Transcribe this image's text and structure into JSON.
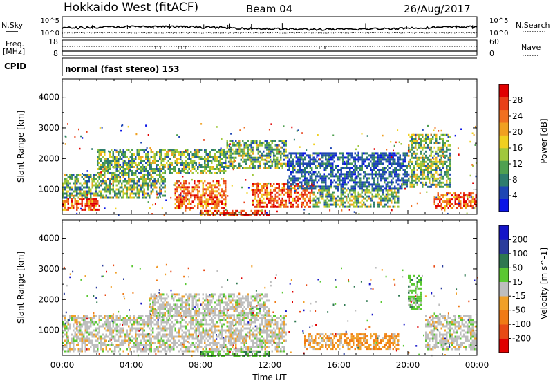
{
  "header": {
    "station": "Hokkaido West (fitACF)",
    "beam": "Beam 04",
    "date": "26/Aug/2017"
  },
  "status_panel": {
    "nsky_label": "N.Sky",
    "nsearch_label": "N.Search",
    "freq_label_1": "Freq.",
    "freq_label_2": "[MHz]",
    "nave_label": "Nave",
    "cpid_label": "CPID",
    "cpid_text": "normal (fast stereo) 153",
    "noise_left_ticks": [
      "10^5",
      "10^0"
    ],
    "noise_right_ticks": [
      "10^5",
      "10^0"
    ],
    "freq_left_ticks": [
      "18",
      "8"
    ],
    "nave_right_ticks": [
      "60",
      "0"
    ]
  },
  "chart_data": [
    {
      "type": "heatmap",
      "xlabel": "",
      "ylabel": "Slant Range [km]",
      "xlim": [
        0,
        24
      ],
      "ylim": [
        180,
        4600
      ],
      "y_ticks": [
        1000,
        2000,
        3000,
        4000
      ],
      "colorbar": {
        "label": "Power [dB]",
        "ticks": [
          4,
          8,
          12,
          16,
          20,
          24,
          28
        ],
        "colors": [
          "#0a14e6",
          "#1e46b4",
          "#2e7d6e",
          "#4fa050",
          "#a0c83c",
          "#f0d020",
          "#f0a020",
          "#f07020",
          "#e84018",
          "#e00000"
        ]
      },
      "echo_regions": [
        {
          "t0": 0.0,
          "t1": 2.2,
          "r0": 300,
          "r1": 700,
          "level": "high"
        },
        {
          "t0": 0.0,
          "t1": 6.0,
          "r0": 700,
          "r1": 1500,
          "level": "medium"
        },
        {
          "t0": 2.0,
          "t1": 9.5,
          "r0": 1500,
          "r1": 2300,
          "level": "medium"
        },
        {
          "t0": 6.5,
          "t1": 9.5,
          "r0": 400,
          "r1": 1300,
          "level": "high"
        },
        {
          "t0": 9.5,
          "t1": 13.0,
          "r0": 1700,
          "r1": 2600,
          "level": "medium"
        },
        {
          "t0": 11.0,
          "t1": 14.5,
          "r0": 400,
          "r1": 1200,
          "level": "high"
        },
        {
          "t0": 14.5,
          "t1": 19.5,
          "r0": 400,
          "r1": 1000,
          "level": "medium"
        },
        {
          "t0": 13.0,
          "t1": 20.0,
          "r0": 1000,
          "r1": 2200,
          "level": "low"
        },
        {
          "t0": 20.0,
          "t1": 22.5,
          "r0": 1100,
          "r1": 2800,
          "level": "medium"
        },
        {
          "t0": 21.5,
          "t1": 24.0,
          "r0": 400,
          "r1": 900,
          "level": "high"
        },
        {
          "t0": 8.0,
          "t1": 12.0,
          "r0": 180,
          "r1": 320,
          "level": "high"
        }
      ]
    },
    {
      "type": "heatmap",
      "xlabel": "Time UT",
      "ylabel": "Slant Range [km]",
      "xlim": [
        0,
        24
      ],
      "ylim": [
        180,
        4600
      ],
      "x_ticks": [
        "00:00",
        "04:00",
        "08:00",
        "12:00",
        "16:00",
        "20:00",
        "00:00"
      ],
      "y_ticks": [
        1000,
        2000,
        3000,
        4000
      ],
      "colorbar": {
        "label": "Velocity [m s^-1]",
        "ticks": [
          200,
          100,
          50,
          15,
          -15,
          -50,
          -100,
          -200
        ],
        "colors": [
          "#1414c8",
          "#2a3c9c",
          "#2e7850",
          "#5ac832",
          "#bebebe",
          "#f0a028",
          "#f07a14",
          "#e84a14",
          "#e00000"
        ]
      },
      "echo_regions": [
        {
          "t0": 0.0,
          "t1": 13.0,
          "r0": 300,
          "r1": 1500,
          "level": "ground"
        },
        {
          "t0": 5.0,
          "t1": 12.0,
          "r0": 1500,
          "r1": 2200,
          "level": "ground"
        },
        {
          "t0": 14.0,
          "t1": 19.5,
          "r0": 400,
          "r1": 900,
          "level": "negative"
        },
        {
          "t0": 20.0,
          "t1": 20.8,
          "r0": 1700,
          "r1": 2800,
          "level": "positive"
        },
        {
          "t0": 21.0,
          "t1": 24.0,
          "r0": 400,
          "r1": 1500,
          "level": "ground"
        },
        {
          "t0": 8.0,
          "t1": 12.0,
          "r0": 180,
          "r1": 320,
          "level": "positive"
        }
      ]
    }
  ]
}
